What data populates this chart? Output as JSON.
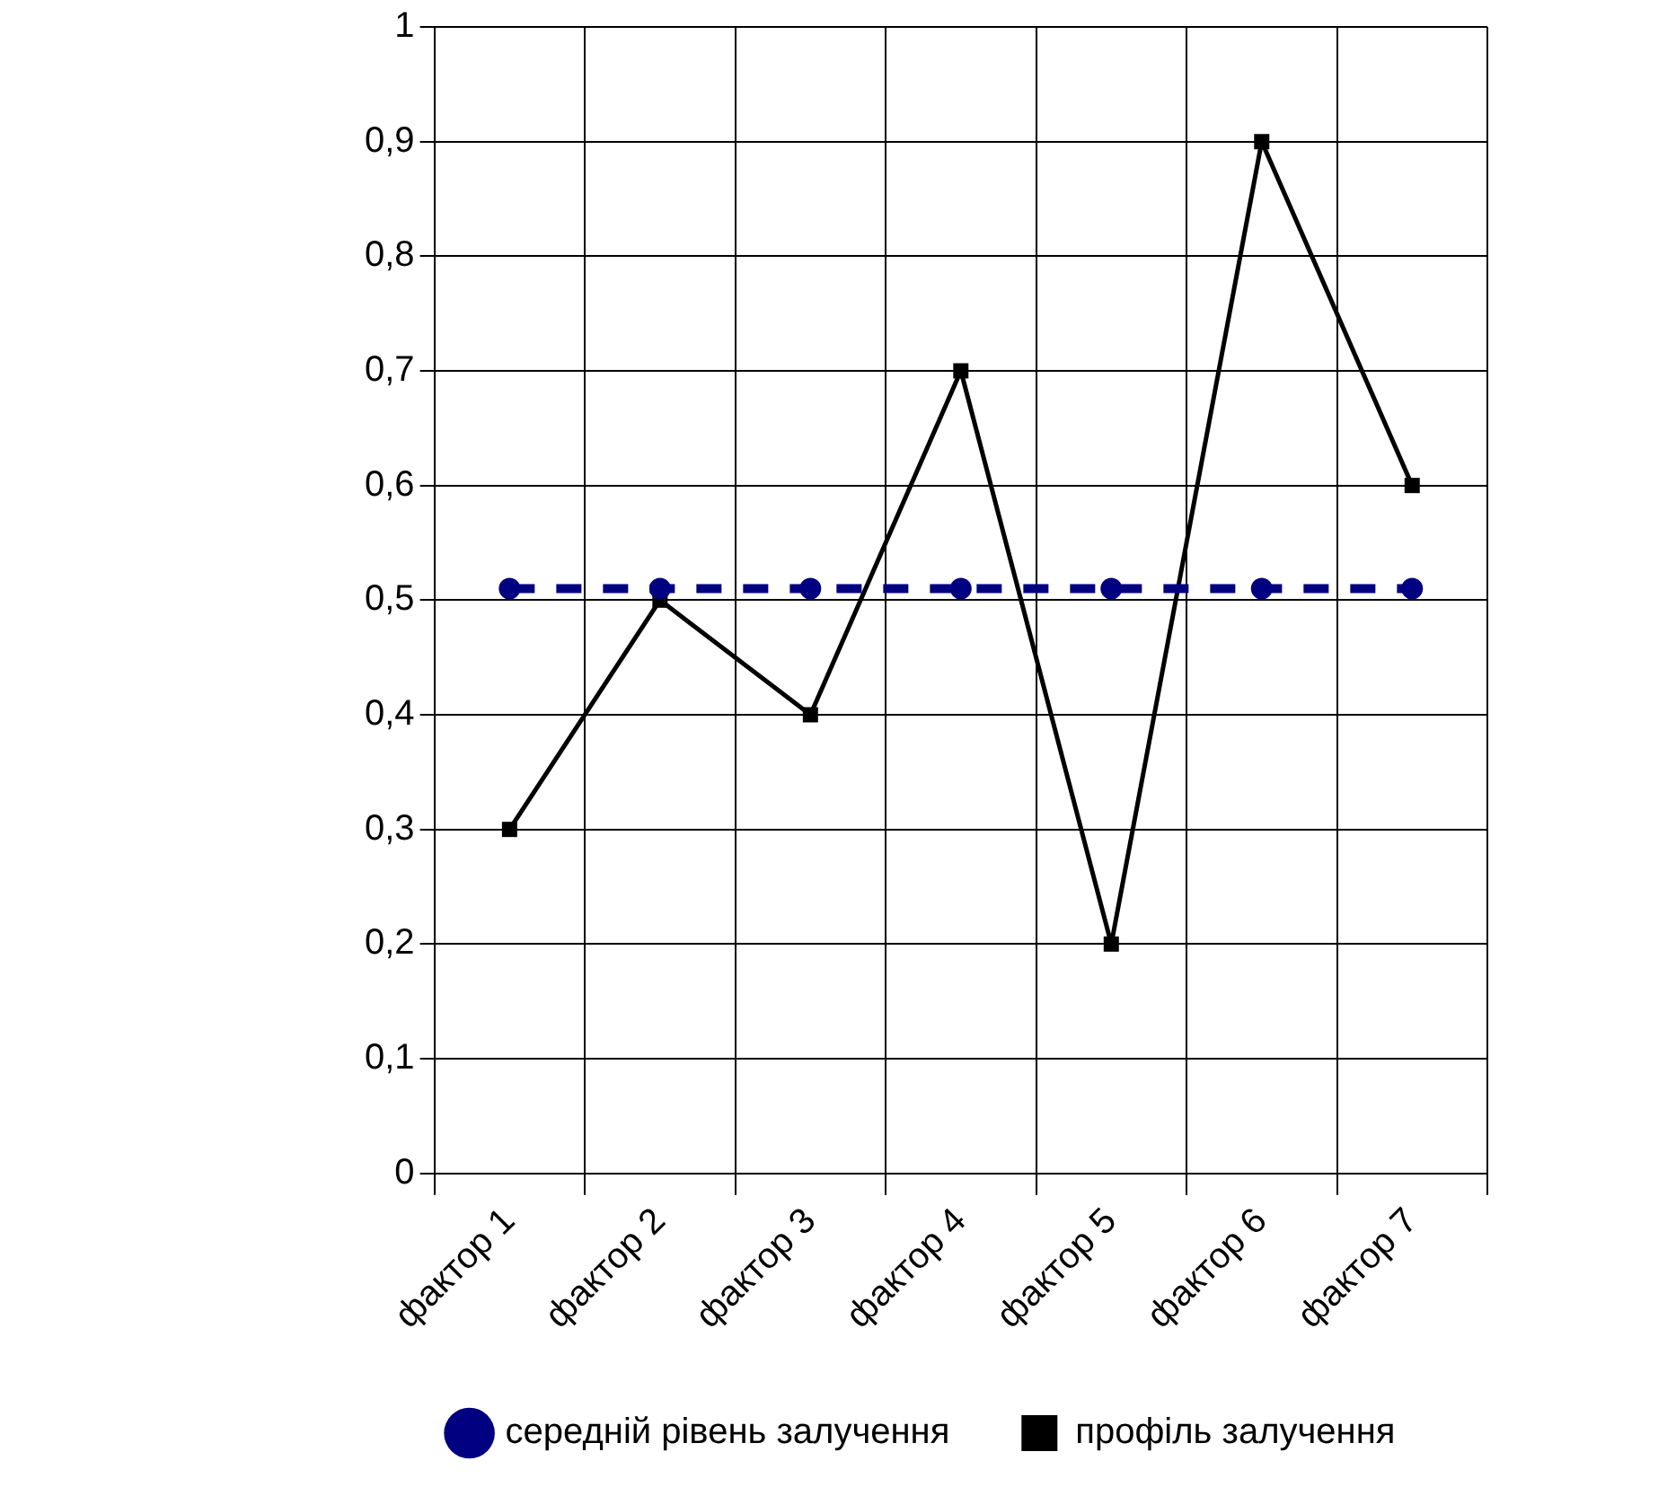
{
  "chart_data": {
    "type": "line",
    "categories": [
      "фактор 1",
      "фактор 2",
      "фактор 3",
      "фактор 4",
      "фактор 5",
      "фактор 6",
      "фактор 7"
    ],
    "series": [
      {
        "name": "середній рівень залучення",
        "color": "#000080",
        "values": [
          0.51,
          0.51,
          0.51,
          0.51,
          0.51,
          0.51,
          0.51
        ],
        "marker": "circle",
        "line_style": "dashed"
      },
      {
        "name": "профіль залучення",
        "color": "#000000",
        "values": [
          0.3,
          0.5,
          0.4,
          0.7,
          0.2,
          0.9,
          0.6
        ],
        "marker": "square",
        "line_style": "solid"
      }
    ],
    "ylim": [
      0,
      1
    ],
    "yticks": [
      0,
      {
        "value": 0.1,
        "label": "0,1"
      },
      {
        "value": 0.2,
        "label": "0,2"
      },
      {
        "value": 0.3,
        "label": "0,3"
      },
      {
        "value": 0.4,
        "label": "0,4"
      },
      {
        "value": 0.5,
        "label": "0,5"
      },
      {
        "value": 0.6,
        "label": "0,6"
      },
      {
        "value": 0.7,
        "label": "0,7"
      },
      {
        "value": 0.8,
        "label": "0,8"
      },
      {
        "value": 0.9,
        "label": "0,9"
      },
      1
    ],
    "grid": true,
    "legend": "bottom"
  }
}
